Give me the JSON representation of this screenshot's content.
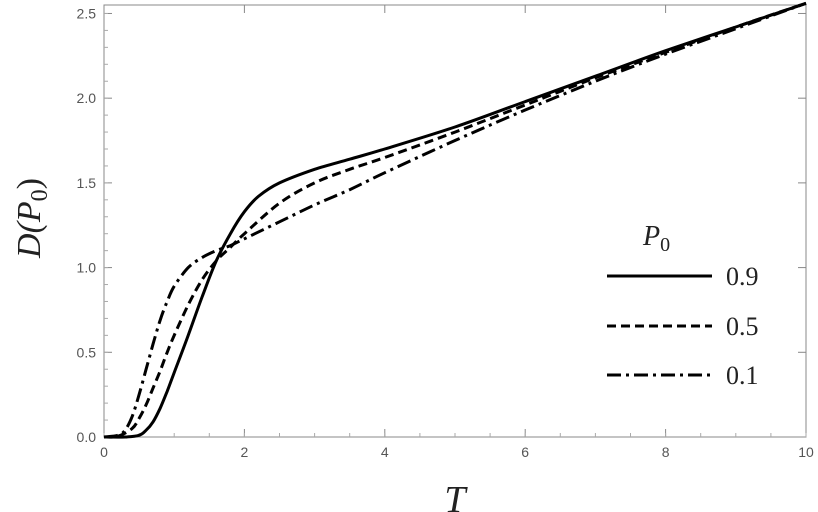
{
  "chart_data": {
    "type": "line",
    "xlabel": "T",
    "ylabel": "D(P0)",
    "ylabel_main": "D(P",
    "ylabel_sub": "0",
    "ylabel_close": ")",
    "xlim": [
      0,
      10
    ],
    "ylim": [
      0,
      2.55
    ],
    "x_ticks": [
      "0",
      "2",
      "4",
      "6",
      "8",
      "10"
    ],
    "y_ticks": [
      "0.0",
      "0.5",
      "1.0",
      "1.5",
      "2.0",
      "2.5"
    ],
    "legend": {
      "title": "P0",
      "title_main": "P",
      "title_sub": "0",
      "placement": "right"
    },
    "series": [
      {
        "name": "0.9",
        "style": "solid",
        "x": [
          0,
          0.3,
          0.5,
          0.6,
          0.7,
          0.8,
          0.9,
          1.0,
          1.2,
          1.4,
          1.6,
          1.8,
          2.0,
          2.2,
          2.5,
          3.0,
          3.5,
          4.0,
          5.0,
          6.0,
          7.0,
          8.0,
          9.0,
          10.0
        ],
        "y": [
          0,
          0,
          0.01,
          0.04,
          0.09,
          0.17,
          0.27,
          0.38,
          0.6,
          0.83,
          1.04,
          1.2,
          1.33,
          1.42,
          1.5,
          1.58,
          1.64,
          1.7,
          1.83,
          1.98,
          2.13,
          2.28,
          2.42,
          2.56
        ]
      },
      {
        "name": "0.5",
        "style": "dashed",
        "x": [
          0,
          0.2,
          0.4,
          0.5,
          0.6,
          0.7,
          0.8,
          0.9,
          1.0,
          1.2,
          1.4,
          1.6,
          1.8,
          2.0,
          2.5,
          3.0,
          3.5,
          4.0,
          5.0,
          6.0,
          7.0,
          8.0,
          9.0,
          10.0
        ],
        "y": [
          0,
          0.005,
          0.05,
          0.11,
          0.19,
          0.29,
          0.39,
          0.5,
          0.6,
          0.78,
          0.93,
          1.04,
          1.12,
          1.2,
          1.38,
          1.5,
          1.58,
          1.65,
          1.8,
          1.96,
          2.12,
          2.27,
          2.42,
          2.56
        ]
      },
      {
        "name": "0.1",
        "style": "dashdot",
        "x": [
          0,
          0.2,
          0.3,
          0.4,
          0.5,
          0.6,
          0.7,
          0.8,
          0.9,
          1.0,
          1.2,
          1.4,
          1.6,
          1.8,
          2.0,
          2.5,
          3.0,
          3.5,
          4.0,
          5.0,
          6.0,
          7.0,
          8.0,
          9.0,
          10.0
        ],
        "y": [
          0,
          0.01,
          0.04,
          0.12,
          0.25,
          0.4,
          0.55,
          0.69,
          0.8,
          0.89,
          1.0,
          1.06,
          1.1,
          1.13,
          1.17,
          1.27,
          1.37,
          1.46,
          1.56,
          1.75,
          1.93,
          2.1,
          2.26,
          2.41,
          2.56
        ]
      }
    ]
  }
}
